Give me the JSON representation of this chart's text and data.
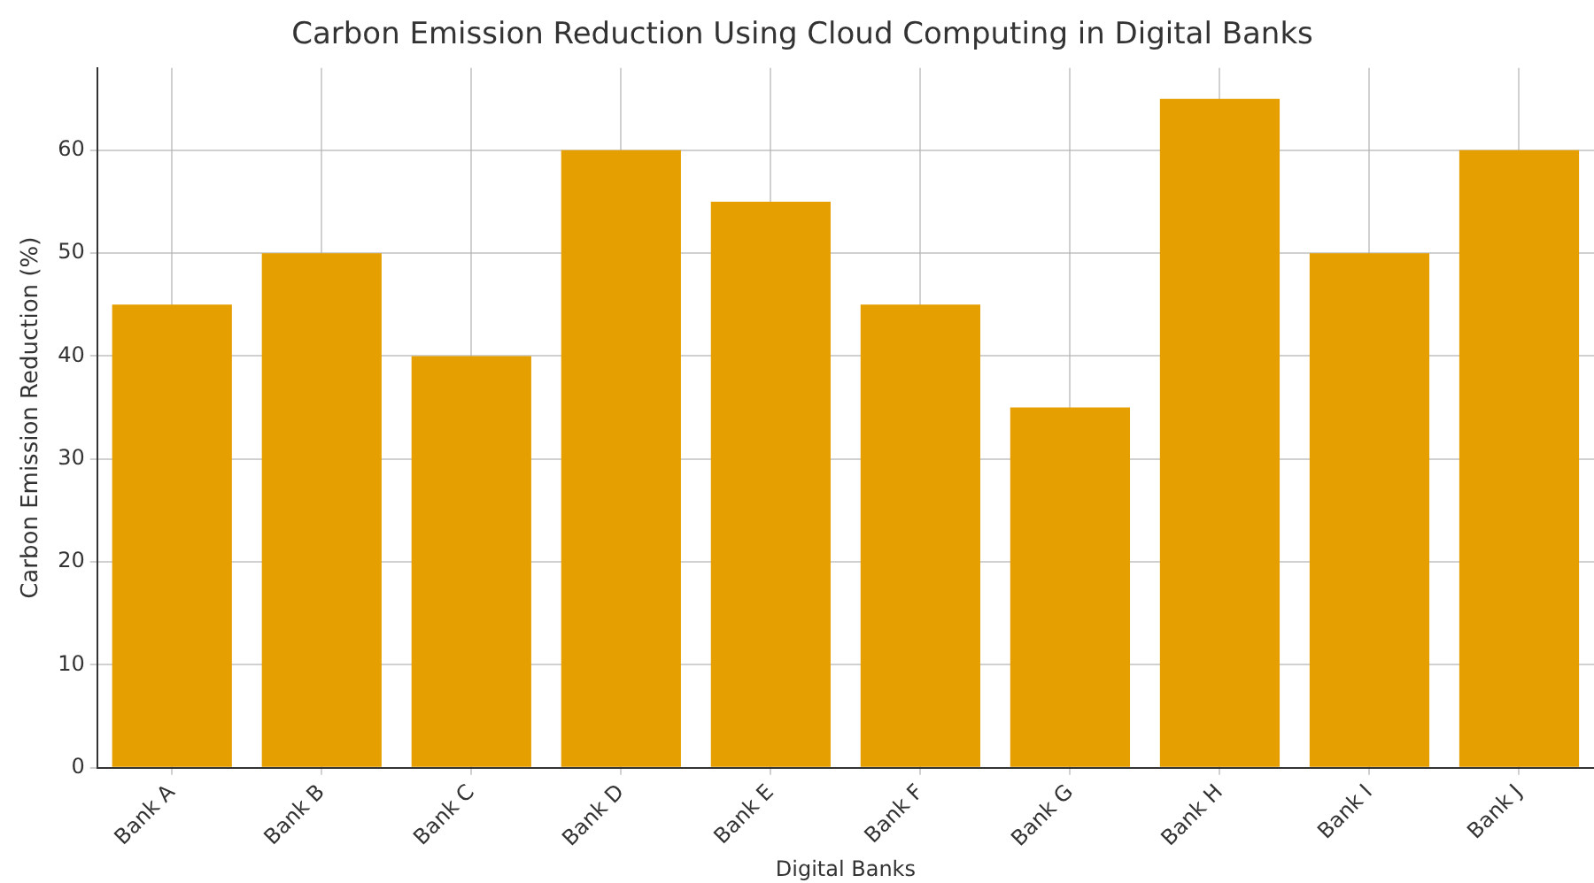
{
  "chart_data": {
    "type": "bar",
    "title": "Carbon Emission Reduction Using Cloud Computing in Digital Banks",
    "xlabel": "Digital Banks",
    "ylabel": "Carbon Emission Reduction (%)",
    "categories": [
      "Bank A",
      "Bank B",
      "Bank C",
      "Bank D",
      "Bank E",
      "Bank F",
      "Bank G",
      "Bank H",
      "Bank I",
      "Bank J"
    ],
    "values": [
      45,
      50,
      40,
      60,
      55,
      45,
      35,
      65,
      50,
      60
    ],
    "color": "#e69f00",
    "ylim": [
      0,
      68
    ],
    "yticks": [
      0,
      10,
      20,
      30,
      40,
      50,
      60
    ],
    "grid": true
  }
}
